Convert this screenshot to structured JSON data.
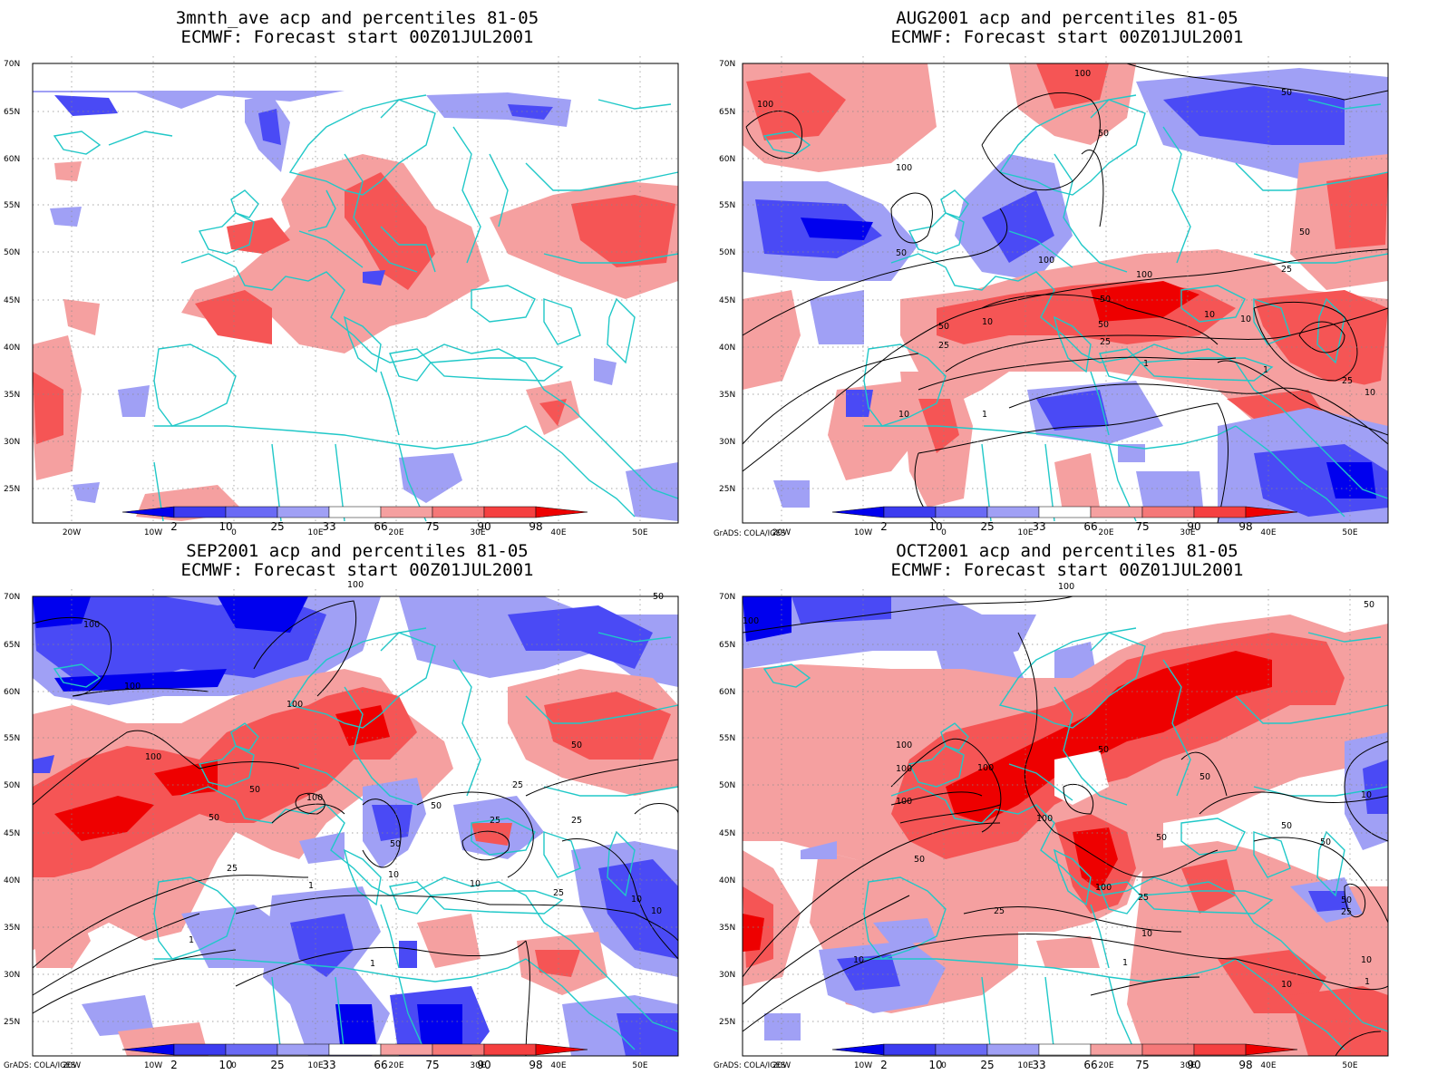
{
  "colors": {
    "blue_dark": "#0000ee",
    "blue_mid": "#4a4af5",
    "blue_light": "#a0a0f5",
    "red_light": "#f5a0a0",
    "red_mid": "#f55555",
    "red_dark": "#ee0000",
    "coast": "#20c8c8",
    "contour": "#000000",
    "grid": "#888888"
  },
  "axes": {
    "lon_labels": [
      "20W",
      "10W",
      "0",
      "10E",
      "20E",
      "30E",
      "40E",
      "50E"
    ],
    "lat_labels": [
      "70N",
      "65N",
      "60N",
      "55N",
      "50N",
      "45N",
      "40N",
      "35N",
      "30N",
      "25N"
    ]
  },
  "colorbar": {
    "labels": [
      "2",
      "10",
      "25",
      "33",
      "66",
      "75",
      "90",
      "98"
    ]
  },
  "credit": "GrADS: COLA/IGES",
  "panels": [
    {
      "id": "p1",
      "title_line1": "3mnth_ave acp and percentiles 81-05",
      "title_line2": "ECMWF: Forecast start 00Z01JUL2001",
      "show_credit": false,
      "contour_labels": []
    },
    {
      "id": "p2",
      "title_line1": "AUG2001 acp and percentiles 81-05",
      "title_line2": "ECMWF: Forecast start 00Z01JUL2001",
      "show_credit": true,
      "contour_labels": [
        "100",
        "100",
        "50",
        "100",
        "50",
        "50",
        "100",
        "100",
        "50",
        "50",
        "25",
        "10",
        "50",
        "10",
        "50",
        "25",
        "25",
        "10",
        "1",
        "1",
        "25",
        "10",
        "1",
        "10"
      ]
    },
    {
      "id": "p3",
      "title_line1": "SEP2001 acp and percentiles 81-05",
      "title_line2": "ECMWF: Forecast start 00Z01JUL2001",
      "show_credit": true,
      "contour_labels": [
        "100",
        "50",
        "100",
        "100",
        "100",
        "100",
        "50",
        "50",
        "100",
        "25",
        "50",
        "25",
        "50",
        "50",
        "25",
        "25",
        "10",
        "10",
        "1",
        "25",
        "10",
        "10",
        "1",
        "1"
      ]
    },
    {
      "id": "p4",
      "title_line1": "OCT2001 acp and percentiles 81-05",
      "title_line2": "ECMWF: Forecast start 00Z01JUL2001",
      "show_credit": true,
      "contour_labels": [
        "100",
        "100",
        "50",
        "100",
        "100",
        "50",
        "100",
        "100",
        "100",
        "50",
        "50",
        "50",
        "10",
        "50",
        "50",
        "25",
        "50",
        "25",
        "100",
        "25",
        "10",
        "10",
        "1",
        "10",
        "10",
        "1"
      ]
    }
  ]
}
